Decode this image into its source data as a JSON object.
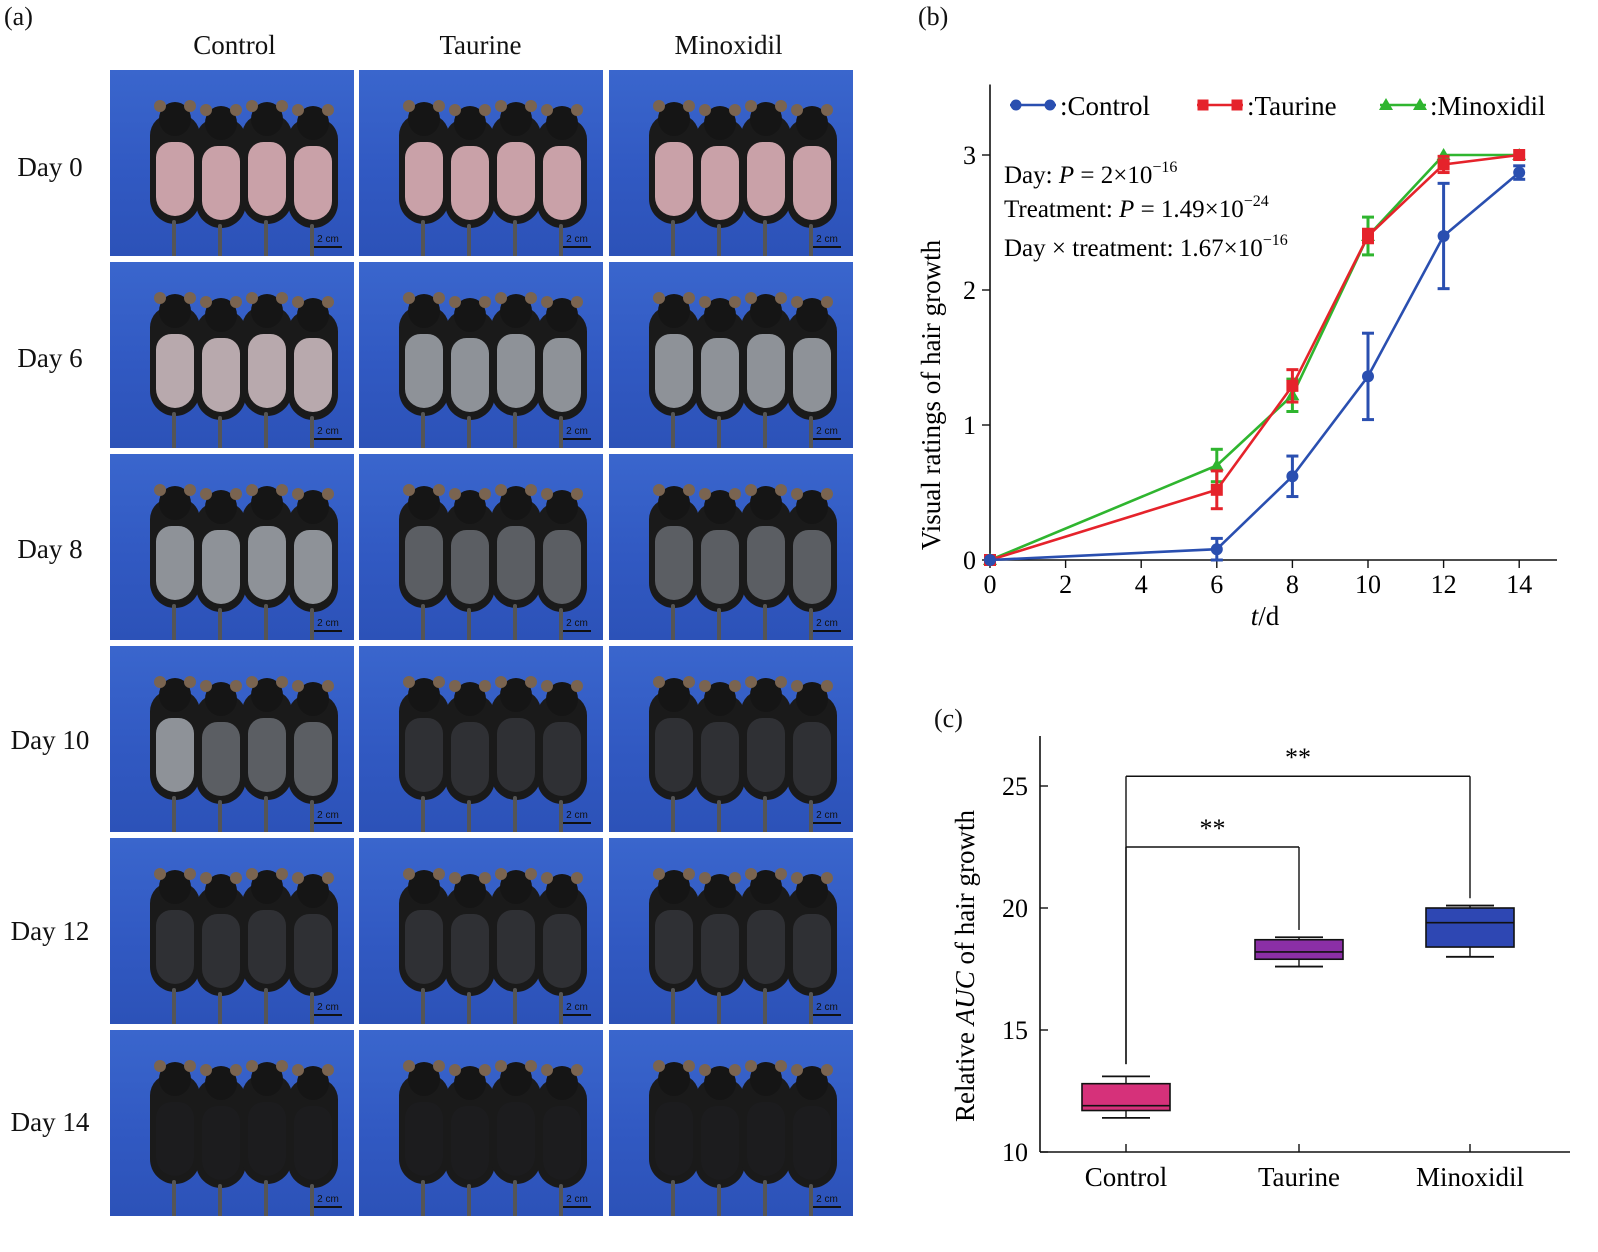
{
  "panel_a": {
    "label": "(a)",
    "columns": [
      "Control",
      "Taurine",
      "Minoxidil"
    ],
    "rows": [
      "Day  0",
      "Day  6",
      "Day  8",
      "Day  10",
      "Day  12",
      "Day  14"
    ],
    "scale_text": "2 cm",
    "bare_skin_colors": [
      "#c9a1a8",
      "#b8a9ad",
      "#8e9298",
      "#5b5e63",
      "#2f3034",
      "#1c1c1e"
    ]
  },
  "panel_b": {
    "label": "(b)",
    "stats": {
      "day_prefix": "Day: ",
      "day_p": "P",
      "day_value": " = 2×10",
      "day_exp": "−16",
      "treat_prefix": "Treatment: ",
      "treat_p": "P",
      "treat_value": " = 1.49×10",
      "treat_exp": "−24",
      "inter_prefix": "Day × treatment: 1.67×10",
      "inter_exp": "−16"
    }
  },
  "panel_c": {
    "label": "(c)",
    "sig_1": "**",
    "sig_2": "**"
  },
  "chart_data": [
    {
      "type": "line",
      "xlabel": "t/d",
      "xlabel_italic_part": "t",
      "xlabel_rest": "/d",
      "ylabel": "Visual ratings of hair growth",
      "xlim": [
        0,
        15
      ],
      "ylim": [
        0,
        3.5
      ],
      "xticks": [
        0,
        2,
        4,
        6,
        8,
        10,
        12,
        14
      ],
      "yticks": [
        0,
        1,
        2,
        3
      ],
      "x": [
        0,
        6,
        8,
        10,
        12,
        14
      ],
      "series": [
        {
          "name": ":Control",
          "color": "#2a4fb0",
          "marker": "circle",
          "values": [
            0,
            0.08,
            0.62,
            1.36,
            2.4,
            2.87
          ],
          "errors": [
            0,
            0.08,
            0.15,
            0.32,
            0.39,
            0.05
          ]
        },
        {
          "name": ":Taurine",
          "color": "#e5232b",
          "marker": "square",
          "values": [
            0,
            0.52,
            1.29,
            2.4,
            2.93,
            3.0
          ],
          "errors": [
            0,
            0.14,
            0.12,
            0.05,
            0.06,
            0
          ]
        },
        {
          "name": ":Minoxidil",
          "color": "#2fb52f",
          "marker": "triangle",
          "values": [
            0,
            0.7,
            1.22,
            2.4,
            3.0,
            3.0
          ],
          "errors": [
            0,
            0.12,
            0.12,
            0.14,
            0,
            0
          ]
        }
      ],
      "legend_position": "top"
    },
    {
      "type": "box",
      "xlabel": "",
      "ylabel": "Relative AUC of hair growth",
      "ylabel_before": "Relative ",
      "ylabel_italic": "AUC",
      "ylabel_after": " of hair growth",
      "ylim": [
        10,
        27
      ],
      "yticks": [
        10,
        15,
        20,
        25
      ],
      "categories": [
        "Control",
        "Taurine",
        "Minoxidil"
      ],
      "boxes": [
        {
          "name": "Control",
          "color": "#d6317a",
          "min": 11.4,
          "q1": 11.7,
          "median": 11.9,
          "q3": 12.8,
          "max": 13.1
        },
        {
          "name": "Taurine",
          "color": "#8b2fa6",
          "min": 17.6,
          "q1": 17.9,
          "median": 18.2,
          "q3": 18.7,
          "max": 18.8
        },
        {
          "name": "Minoxidil",
          "color": "#2e47b3",
          "min": 18.0,
          "q1": 18.4,
          "median": 19.4,
          "q3": 20.0,
          "max": 20.1
        }
      ],
      "significance": [
        {
          "from": "Control",
          "to": "Taurine",
          "label": "**",
          "y": 22.5
        },
        {
          "from": "Control",
          "to": "Minoxidil",
          "label": "**",
          "y": 25.4
        }
      ]
    }
  ]
}
